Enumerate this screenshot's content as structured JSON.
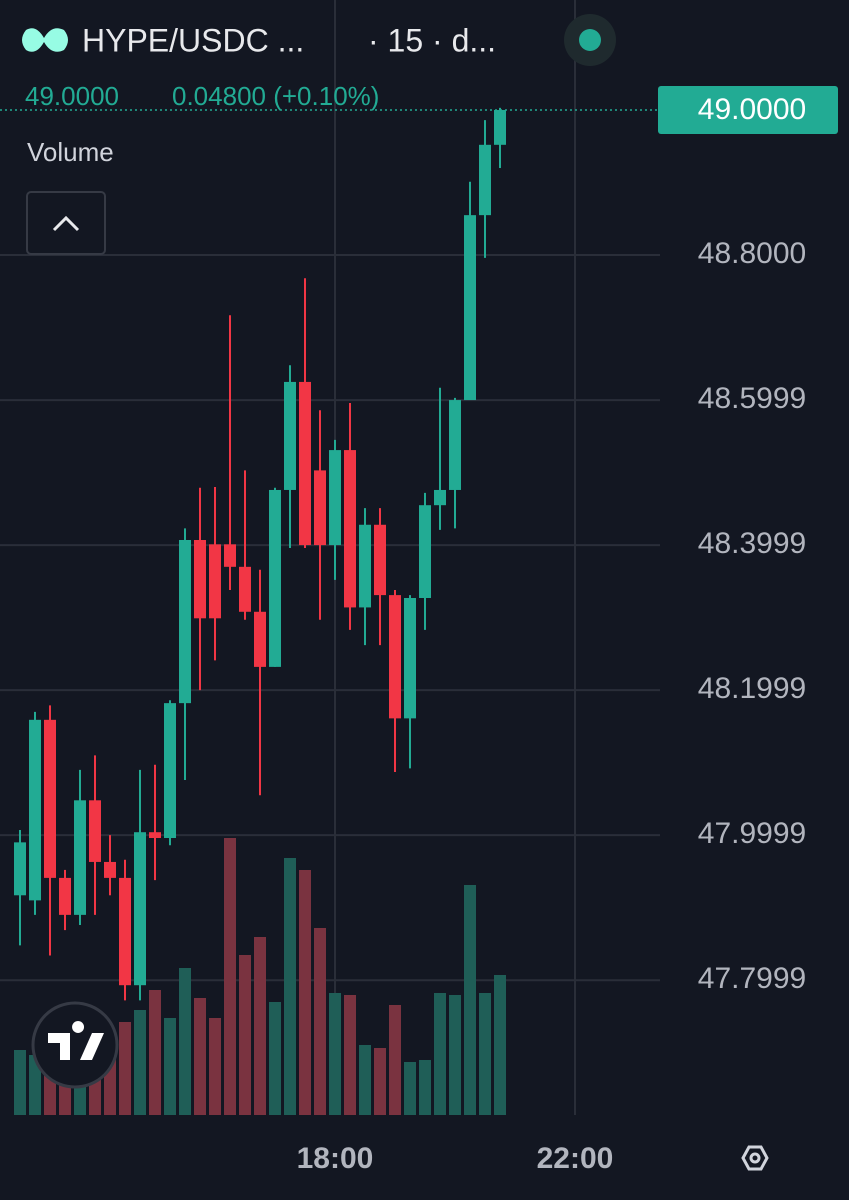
{
  "header": {
    "symbol": "HYPE/USDC ...",
    "interval": "· 15 · d...",
    "price": "49.0000",
    "change": "0.04800 (+0.10%)",
    "indicator": "Volume"
  },
  "chart_data": {
    "type": "candlestick",
    "x": [
      12.75,
      13,
      13.25,
      13.5,
      13.75,
      14,
      14.25,
      14.5,
      14.75,
      15,
      15.25,
      15.5,
      15.75,
      16,
      16.25,
      16.5,
      16.75,
      17,
      17.25,
      17.5,
      17.75,
      18,
      18.25,
      18.5,
      18.75,
      19,
      19.25,
      19.5,
      19.75,
      20,
      20.25,
      20.5,
      20.75
    ],
    "open": [
      47.917,
      47.91,
      48.159,
      47.941,
      47.89,
      48.048,
      47.963,
      47.941,
      47.793,
      48.004,
      47.996,
      48.182,
      48.407,
      48.401,
      48.401,
      48.37,
      48.308,
      48.232,
      48.476,
      48.625,
      48.503,
      48.4,
      48.531,
      48.314,
      48.428,
      48.331,
      48.161,
      48.327,
      48.455,
      48.476,
      48.6,
      48.855,
      48.952
    ],
    "high": [
      48.007,
      48.17,
      48.179,
      47.952,
      48.09,
      48.11,
      48.0,
      47.966,
      48.09,
      48.097,
      48.186,
      48.423,
      48.479,
      48.48,
      48.717,
      48.503,
      48.366,
      48.479,
      48.648,
      48.768,
      48.586,
      48.545,
      48.596,
      48.451,
      48.451,
      48.338,
      48.331,
      48.472,
      48.617,
      48.603,
      48.901,
      48.986,
      49.003
    ],
    "low": [
      47.848,
      47.89,
      47.834,
      47.869,
      47.876,
      47.89,
      47.917,
      47.772,
      47.772,
      47.938,
      47.986,
      48.076,
      48.2,
      48.241,
      48.338,
      48.297,
      48.055,
      48.232,
      48.396,
      48.396,
      48.297,
      48.352,
      48.283,
      48.262,
      48.262,
      48.087,
      48.092,
      48.283,
      48.421,
      48.423,
      48.6,
      48.796,
      48.92
    ],
    "close": [
      47.99,
      48.159,
      47.941,
      47.89,
      48.048,
      47.963,
      47.941,
      47.793,
      48.004,
      47.996,
      48.182,
      48.407,
      48.299,
      48.299,
      48.37,
      48.308,
      48.232,
      48.476,
      48.625,
      48.4,
      48.4,
      48.531,
      48.314,
      48.428,
      48.331,
      48.161,
      48.327,
      48.455,
      48.476,
      48.6,
      48.855,
      48.952,
      49.0
    ],
    "volume": [
      65,
      60,
      55,
      45,
      47,
      60,
      70,
      93,
      105,
      125,
      97,
      147,
      117,
      97,
      277,
      160,
      178,
      113,
      257,
      245,
      187,
      122,
      120,
      70,
      67,
      110,
      53,
      55,
      122,
      120,
      230,
      122,
      140
    ],
    "up_color": "#22ab94",
    "down_color": "#f23645",
    "volume_up_color": "#1f5e57",
    "volume_down_color": "#7a3340",
    "last_price": {
      "value": 49.0,
      "label": "49.0000"
    },
    "xlim": [
      12.4167,
      23.4167
    ],
    "xticks": [
      {
        "value": 18,
        "label": "18:00"
      },
      {
        "value": 22,
        "label": "22:00"
      }
    ],
    "ylim": [
      47.614,
      49.0207
    ],
    "yticks": [
      {
        "value": 48.8,
        "label": "48.8000"
      },
      48.5999,
      48.3999,
      48.1999,
      47.9999,
      47.7999
    ],
    "grid": true
  }
}
